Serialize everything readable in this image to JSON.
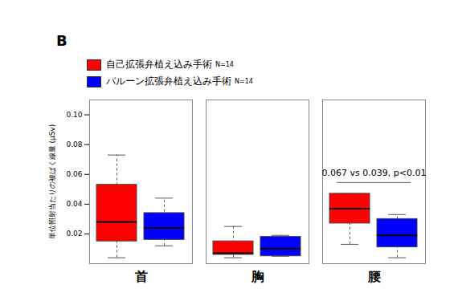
{
  "chart_data": {
    "type": "boxplot",
    "title": "B",
    "y_label": "単位照射当たりの被ばく線量 (μSv)",
    "categories": [
      "首",
      "胸",
      "腰"
    ],
    "series": [
      {
        "name": "自己拡張弁植え込み手術",
        "n_label": "N=14",
        "color": "#ff0000",
        "stats": [
          {
            "min": 0.004,
            "q1": 0.015,
            "median": 0.028,
            "q3": 0.053,
            "max": 0.073
          },
          {
            "min": 0.004,
            "q1": 0.006,
            "median": 0.007,
            "q3": 0.015,
            "max": 0.025
          },
          {
            "min": 0.013,
            "q1": 0.027,
            "median": 0.037,
            "q3": 0.047,
            "max": 0.047
          }
        ]
      },
      {
        "name": "バルーン拡張弁植え込み手術",
        "n_label": "N=14",
        "color": "#0000ff",
        "stats": [
          {
            "min": 0.012,
            "q1": 0.016,
            "median": 0.024,
            "q3": 0.034,
            "max": 0.044
          },
          {
            "min": 0.005,
            "q1": 0.005,
            "median": 0.01,
            "q3": 0.018,
            "max": 0.019
          },
          {
            "min": 0.004,
            "q1": 0.011,
            "median": 0.019,
            "q3": 0.03,
            "max": 0.033
          }
        ]
      }
    ],
    "annotations": [
      {
        "category": "腰",
        "text": "0.067 vs 0.039, p<0.01"
      }
    ],
    "ylim": [
      0,
      0.11
    ],
    "yticks": [
      0.02,
      0.04,
      0.06,
      0.08,
      {
        "value": 0.1,
        "label": "0.10"
      }
    ],
    "legend": "top-left"
  }
}
